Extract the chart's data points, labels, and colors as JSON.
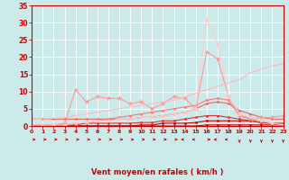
{
  "x": [
    0,
    1,
    2,
    3,
    4,
    5,
    6,
    7,
    8,
    9,
    10,
    11,
    12,
    13,
    14,
    15,
    16,
    17,
    18,
    19,
    20,
    21,
    22,
    23
  ],
  "series": [
    {
      "values": [
        0,
        0,
        0,
        0,
        0,
        0,
        0,
        0,
        0,
        0,
        0,
        0,
        0,
        0,
        0,
        0,
        0.3,
        0.3,
        0.3,
        0.3,
        0.3,
        0.3,
        0.3,
        0.3
      ],
      "color": "#cc0000",
      "linewidth": 0.8,
      "marker": "D",
      "markersize": 1.5
    },
    {
      "values": [
        0,
        0,
        0,
        0,
        0,
        0,
        0,
        0,
        0,
        0,
        0.3,
        0.3,
        0.8,
        0.8,
        0.8,
        1.0,
        1.5,
        1.5,
        1.5,
        1.5,
        1.5,
        1.0,
        0.8,
        0.3
      ],
      "color": "#cc0000",
      "linewidth": 0.8,
      "marker": "D",
      "markersize": 1.5
    },
    {
      "values": [
        0.3,
        0.3,
        0.3,
        0.3,
        0.3,
        0.8,
        0.8,
        0.8,
        0.8,
        0.8,
        1.0,
        1.0,
        1.5,
        1.5,
        2.0,
        2.5,
        3.0,
        3.0,
        2.5,
        2.0,
        1.5,
        1.0,
        0.8,
        0.8
      ],
      "color": "#dd3333",
      "linewidth": 0.8,
      "marker": "D",
      "markersize": 1.5
    },
    {
      "values": [
        2.0,
        2.0,
        2.0,
        2.0,
        2.0,
        2.0,
        2.0,
        2.0,
        2.0,
        2.0,
        2.5,
        2.5,
        3.0,
        3.5,
        4.0,
        5.0,
        6.5,
        7.0,
        6.5,
        4.5,
        3.5,
        2.5,
        2.0,
        2.0
      ],
      "color": "#ee6666",
      "linewidth": 0.8,
      "marker": "D",
      "markersize": 1.5
    },
    {
      "values": [
        0,
        0,
        0.3,
        0.8,
        10.5,
        7.0,
        8.5,
        8.0,
        8.0,
        6.5,
        7.0,
        5.0,
        6.5,
        8.5,
        8.0,
        5.0,
        21.5,
        19.5,
        8.5,
        3.5,
        2.0,
        2.5,
        2.5,
        3.0
      ],
      "color": "#ff9999",
      "linewidth": 0.8,
      "marker": "*",
      "markersize": 3.5
    },
    {
      "values": [
        2.0,
        2.0,
        2.2,
        2.5,
        3.0,
        3.5,
        4.0,
        4.5,
        5.0,
        5.5,
        6.0,
        6.5,
        7.0,
        7.5,
        8.5,
        9.5,
        10.5,
        11.5,
        12.5,
        13.5,
        15.5,
        16.5,
        17.5,
        18.0
      ],
      "color": "#ffbbbb",
      "linewidth": 0.8,
      "marker": null,
      "markersize": 0
    },
    {
      "values": [
        0,
        0,
        0.3,
        0.3,
        0.8,
        1.0,
        1.5,
        2.0,
        2.5,
        3.0,
        3.5,
        4.0,
        4.5,
        5.0,
        5.5,
        6.0,
        7.5,
        8.0,
        7.5,
        3.0,
        2.0,
        1.5,
        0.8,
        0.3
      ],
      "color": "#ff7777",
      "linewidth": 0.8,
      "marker": "D",
      "markersize": 1.5
    },
    {
      "values": [
        0.3,
        0.3,
        0.3,
        0.3,
        0.8,
        1.0,
        1.5,
        1.5,
        2.0,
        2.0,
        2.5,
        2.5,
        3.0,
        3.5,
        4.0,
        5.0,
        31.0,
        24.0,
        8.5,
        3.5,
        2.5,
        1.5,
        0.8,
        0.3
      ],
      "color": "#ffcccc",
      "linewidth": 0.8,
      "marker": "*",
      "markersize": 3.5
    }
  ],
  "xlabel": "Vent moyen/en rafales ( km/h )",
  "ylim": [
    0,
    35
  ],
  "xlim": [
    0,
    23
  ],
  "yticks": [
    0,
    5,
    10,
    15,
    20,
    25,
    30,
    35
  ],
  "xticks": [
    0,
    1,
    2,
    3,
    4,
    5,
    6,
    7,
    8,
    9,
    10,
    11,
    12,
    13,
    14,
    15,
    16,
    17,
    18,
    19,
    20,
    21,
    22,
    23
  ],
  "bg_color": "#cceaea",
  "grid_color": "#ffffff",
  "axis_color": "#cc0000",
  "label_color": "#cc0000",
  "tick_color": "#cc0000",
  "xlabel_fontsize": 6.0,
  "tick_fontsize_x": 4.5,
  "tick_fontsize_y": 5.5
}
